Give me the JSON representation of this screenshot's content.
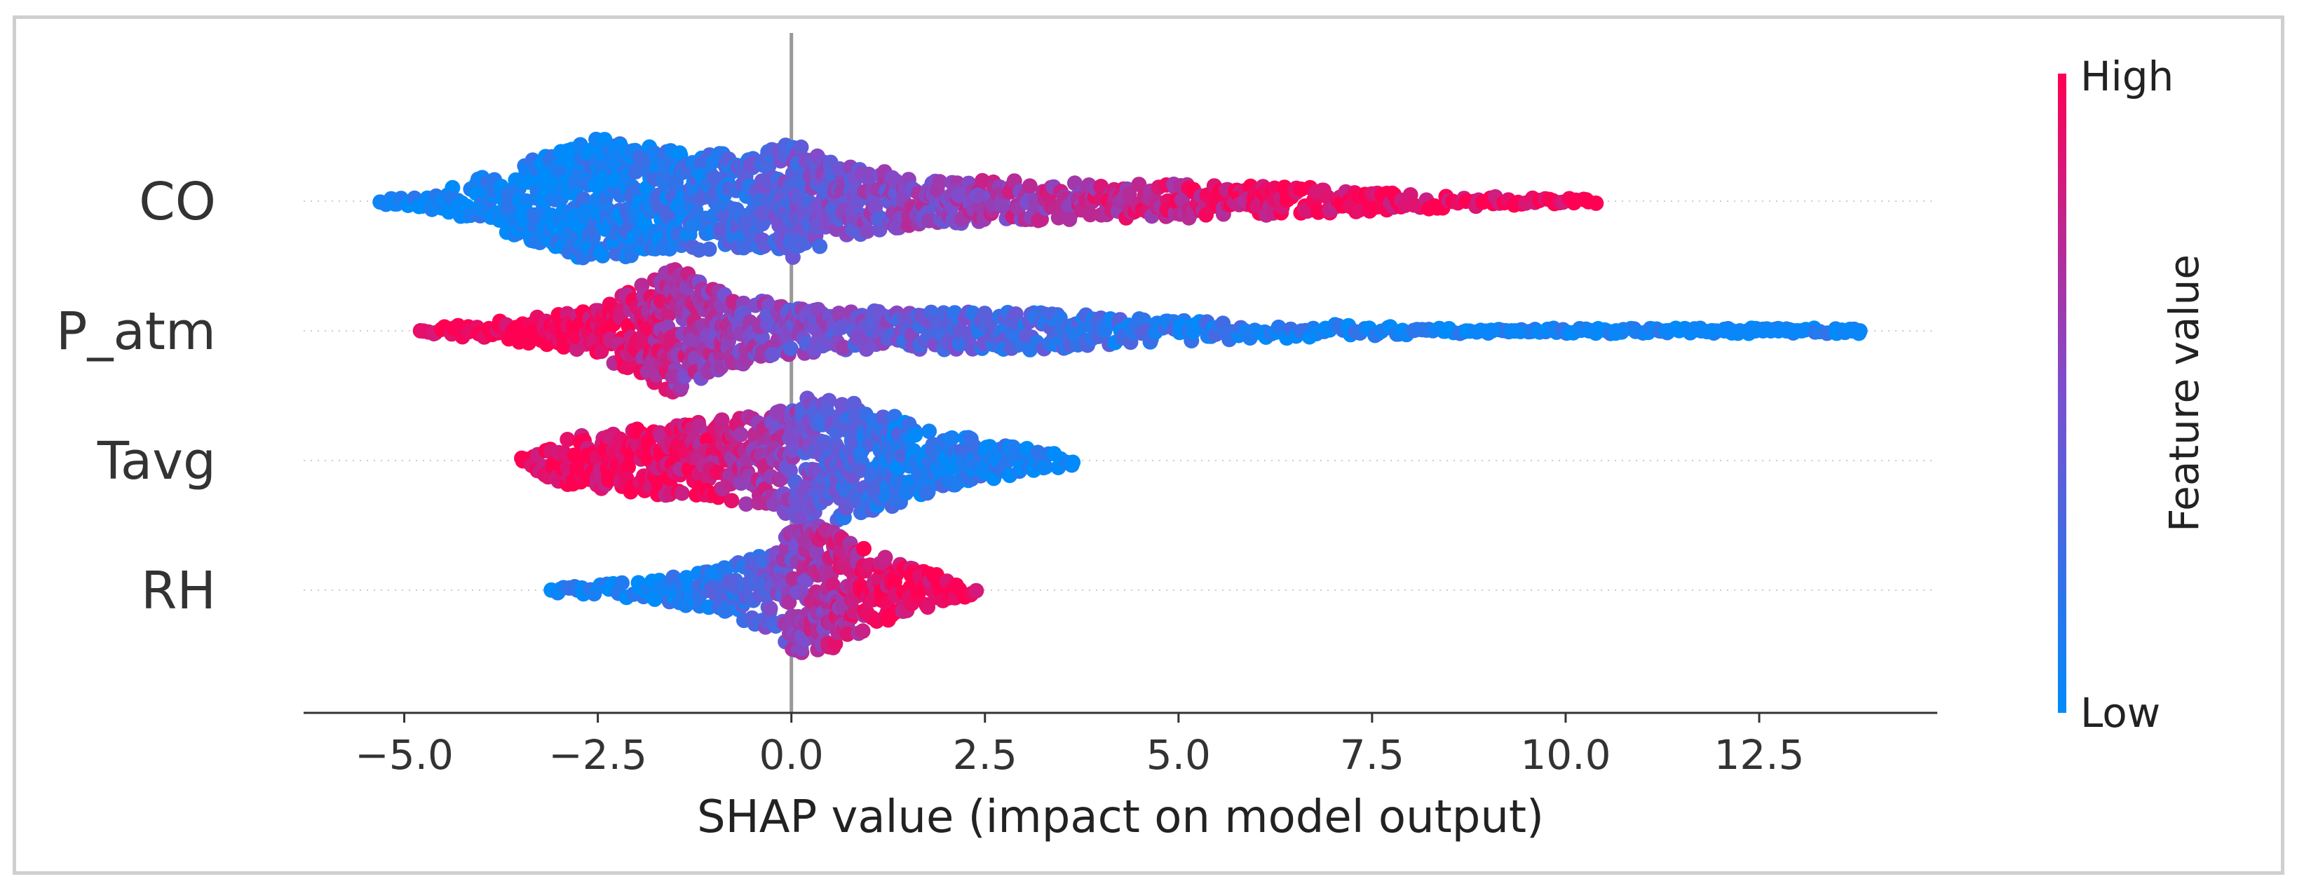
{
  "chart_data": {
    "type": "scatter",
    "subtype": "shap-beeswarm",
    "xlabel": "SHAP value (impact on model output)",
    "xlim": [
      -6.3,
      14.8
    ],
    "xticks": [
      -5.0,
      -2.5,
      0.0,
      2.5,
      5.0,
      7.5,
      10.0,
      12.5
    ],
    "xtick_labels": [
      "−5.0",
      "−2.5",
      "0.0",
      "2.5",
      "5.0",
      "7.5",
      "10.0",
      "12.5"
    ],
    "zero_line": 0.0,
    "features": [
      {
        "name": "CO",
        "min": -5.3,
        "max": 10.4,
        "density": [
          [
            -5.3,
            0.04
          ],
          [
            -4.5,
            0.15
          ],
          [
            -3.5,
            0.55
          ],
          [
            -2.5,
            0.95
          ],
          [
            -1.5,
            0.75
          ],
          [
            -0.5,
            0.7
          ],
          [
            0.0,
            0.9
          ],
          [
            0.5,
            0.6
          ],
          [
            1.5,
            0.38
          ],
          [
            3.0,
            0.3
          ],
          [
            4.5,
            0.26
          ],
          [
            6.0,
            0.24
          ],
          [
            7.5,
            0.16
          ],
          [
            8.5,
            0.1
          ],
          [
            9.5,
            0.06
          ],
          [
            10.4,
            0.03
          ]
        ],
        "color_trend": [
          [
            -5.3,
            0.02
          ],
          [
            -3.0,
            0.05
          ],
          [
            -1.0,
            0.2
          ],
          [
            0.0,
            0.4
          ],
          [
            2.0,
            0.6
          ],
          [
            4.0,
            0.75
          ],
          [
            6.5,
            0.92
          ],
          [
            10.4,
            1.0
          ]
        ],
        "sparse_points": []
      },
      {
        "name": "P_atm",
        "min": -4.8,
        "max": 13.8,
        "density": [
          [
            -4.8,
            0.03
          ],
          [
            -3.5,
            0.18
          ],
          [
            -2.5,
            0.35
          ],
          [
            -1.5,
            0.95
          ],
          [
            -0.8,
            0.55
          ],
          [
            0.0,
            0.35
          ],
          [
            1.5,
            0.28
          ],
          [
            3.0,
            0.3
          ],
          [
            4.5,
            0.18
          ],
          [
            6.0,
            0.12
          ],
          [
            7.5,
            0.08
          ],
          [
            8.5,
            0.04
          ]
        ],
        "color_trend": [
          [
            -4.8,
            1.0
          ],
          [
            -2.5,
            0.96
          ],
          [
            -1.5,
            0.7
          ],
          [
            0.0,
            0.5
          ],
          [
            2.0,
            0.35
          ],
          [
            4.0,
            0.2
          ],
          [
            8.5,
            0.04
          ]
        ],
        "sparse_points": [
          8.9,
          9.05,
          9.3,
          9.35,
          10.3,
          10.65,
          11.3,
          11.6,
          11.75,
          11.9,
          12.05,
          12.15,
          12.25,
          12.35,
          12.45,
          12.55,
          12.65,
          12.75,
          12.85,
          12.95,
          13.05,
          13.7,
          13.8
        ]
      },
      {
        "name": "Tavg",
        "min": -3.5,
        "max": 3.7,
        "density": [
          [
            -3.5,
            0.05
          ],
          [
            -3.0,
            0.35
          ],
          [
            -2.0,
            0.5
          ],
          [
            -1.0,
            0.6
          ],
          [
            -0.3,
            0.7
          ],
          [
            0.3,
            1.0
          ],
          [
            1.0,
            0.8
          ],
          [
            2.0,
            0.4
          ],
          [
            3.0,
            0.2
          ],
          [
            3.7,
            0.05
          ]
        ],
        "color_trend": [
          [
            -3.5,
            0.98
          ],
          [
            -2.0,
            0.95
          ],
          [
            -1.0,
            0.85
          ],
          [
            -0.2,
            0.6
          ],
          [
            0.5,
            0.35
          ],
          [
            1.5,
            0.15
          ],
          [
            3.7,
            0.02
          ]
        ],
        "sparse_points": []
      },
      {
        "name": "RH",
        "min": -3.1,
        "max": 2.4,
        "density": [
          [
            -3.1,
            0.04
          ],
          [
            -2.0,
            0.12
          ],
          [
            -1.0,
            0.3
          ],
          [
            -0.3,
            0.6
          ],
          [
            0.0,
            0.9
          ],
          [
            0.4,
            1.0
          ],
          [
            0.8,
            0.7
          ],
          [
            1.5,
            0.35
          ],
          [
            2.4,
            0.05
          ]
        ],
        "color_trend": [
          [
            -3.1,
            0.02
          ],
          [
            -1.5,
            0.08
          ],
          [
            -0.5,
            0.3
          ],
          [
            0.0,
            0.55
          ],
          [
            0.6,
            0.75
          ],
          [
            1.2,
            0.92
          ],
          [
            2.4,
            1.0
          ]
        ],
        "sparse_points": []
      }
    ],
    "colorbar": {
      "label": "Feature value",
      "high_label": "High",
      "low_label": "Low",
      "high_color": "#ff0052",
      "low_color": "#008bfb"
    }
  }
}
